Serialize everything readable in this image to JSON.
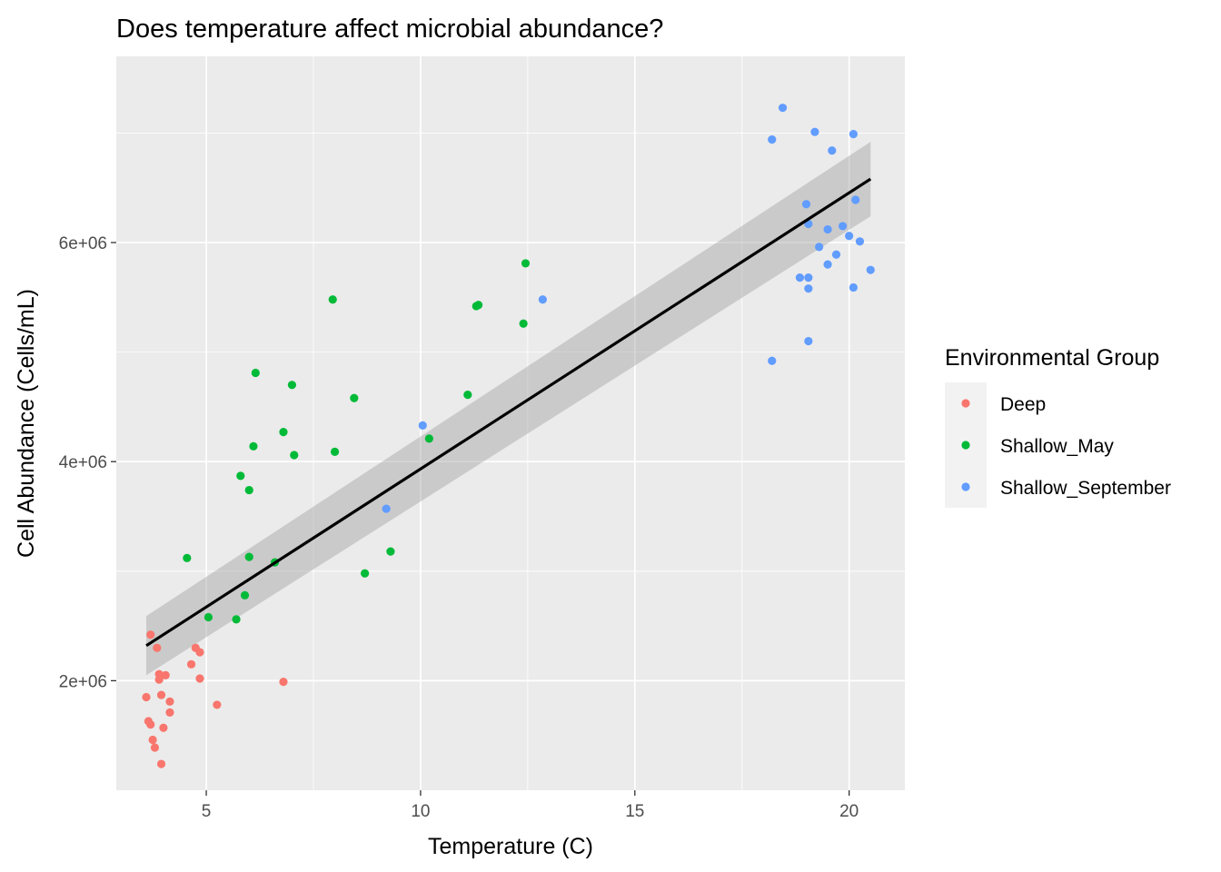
{
  "chart_data": {
    "type": "scatter",
    "title": "Does temperature affect microbial abundance?",
    "xlabel": "Temperature (C)",
    "ylabel": "Cell Abundance (Cells/mL)",
    "xlim": [
      2.9,
      21.3
    ],
    "ylim": [
      1000000,
      7700000
    ],
    "x_ticks": [
      5,
      10,
      15,
      20
    ],
    "x_tick_labels": [
      "5",
      "10",
      "15",
      "20"
    ],
    "y_ticks": [
      2000000,
      4000000,
      6000000
    ],
    "y_tick_labels": [
      "2e+06",
      "4e+06",
      "6e+06"
    ],
    "grid": true,
    "legend": {
      "title": "Environmental Group",
      "position": "right"
    },
    "series": [
      {
        "name": "Deep",
        "color": "#F8766D",
        "points": [
          [
            3.6,
            1850000
          ],
          [
            3.65,
            1630000
          ],
          [
            3.7,
            1600000
          ],
          [
            3.75,
            1460000
          ],
          [
            3.7,
            2420000
          ],
          [
            3.8,
            1390000
          ],
          [
            3.85,
            2300000
          ],
          [
            3.9,
            2060000
          ],
          [
            3.9,
            2010000
          ],
          [
            3.95,
            1870000
          ],
          [
            3.95,
            1240000
          ],
          [
            4.0,
            1570000
          ],
          [
            4.05,
            2050000
          ],
          [
            4.15,
            1810000
          ],
          [
            4.15,
            1710000
          ],
          [
            4.65,
            2150000
          ],
          [
            4.75,
            2300000
          ],
          [
            4.85,
            2260000
          ],
          [
            4.85,
            2020000
          ],
          [
            5.25,
            1780000
          ],
          [
            6.8,
            1990000
          ]
        ]
      },
      {
        "name": "Shallow_May",
        "color": "#00BA38",
        "points": [
          [
            4.55,
            3120000
          ],
          [
            5.05,
            2580000
          ],
          [
            5.7,
            2560000
          ],
          [
            5.8,
            3870000
          ],
          [
            5.9,
            2780000
          ],
          [
            6.0,
            3130000
          ],
          [
            6.0,
            3740000
          ],
          [
            6.1,
            4140000
          ],
          [
            6.15,
            4810000
          ],
          [
            6.6,
            3080000
          ],
          [
            6.8,
            4270000
          ],
          [
            7.0,
            4700000
          ],
          [
            7.05,
            4060000
          ],
          [
            7.95,
            5480000
          ],
          [
            8.0,
            4090000
          ],
          [
            8.45,
            4580000
          ],
          [
            8.7,
            2980000
          ],
          [
            9.3,
            3180000
          ],
          [
            10.2,
            4210000
          ],
          [
            11.1,
            4610000
          ],
          [
            11.3,
            5420000
          ],
          [
            11.35,
            5430000
          ],
          [
            12.4,
            5260000
          ],
          [
            12.45,
            5810000
          ]
        ]
      },
      {
        "name": "Shallow_September",
        "color": "#619CFF",
        "points": [
          [
            9.2,
            3570000
          ],
          [
            10.05,
            4330000
          ],
          [
            12.85,
            5480000
          ],
          [
            18.2,
            6940000
          ],
          [
            18.2,
            4920000
          ],
          [
            18.45,
            7230000
          ],
          [
            18.85,
            5680000
          ],
          [
            19.0,
            6350000
          ],
          [
            19.05,
            5100000
          ],
          [
            19.05,
            6170000
          ],
          [
            19.05,
            5680000
          ],
          [
            19.05,
            5580000
          ],
          [
            19.2,
            7010000
          ],
          [
            19.3,
            5960000
          ],
          [
            19.5,
            6120000
          ],
          [
            19.5,
            5800000
          ],
          [
            19.6,
            6840000
          ],
          [
            19.7,
            5890000
          ],
          [
            19.85,
            6150000
          ],
          [
            20.0,
            6060000
          ],
          [
            20.1,
            5590000
          ],
          [
            20.1,
            6990000
          ],
          [
            20.15,
            6390000
          ],
          [
            20.25,
            6010000
          ],
          [
            20.5,
            5750000
          ]
        ]
      }
    ],
    "trend": {
      "method": "linear",
      "x": [
        3.6,
        20.5
      ],
      "y": [
        2320000,
        6580000
      ],
      "ci_lower": [
        2050000,
        6240000
      ],
      "ci_upper": [
        2590000,
        6920000
      ],
      "line_color": "#000000",
      "band_color": "#999999"
    }
  }
}
